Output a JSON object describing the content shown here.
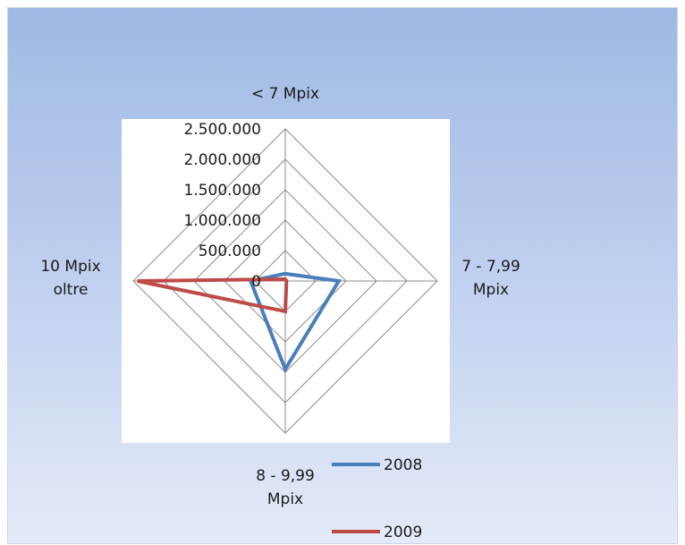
{
  "chart_data": {
    "type": "radar",
    "categories": [
      "< 7 Mpix",
      "7 - 7,99 Mpix",
      "8 - 9,99 Mpix",
      "10 Mpix oltre"
    ],
    "category_lines": [
      [
        "< 7 Mpix"
      ],
      [
        "7 - 7,99",
        "Mpix"
      ],
      [
        "8 - 9,99",
        "Mpix"
      ],
      [
        "10 Mpix",
        "oltre"
      ]
    ],
    "series": [
      {
        "name": "2008",
        "color": "#4a7ebb",
        "values": [
          120000,
          880000,
          1450000,
          570000
        ]
      },
      {
        "name": "2009",
        "color": "#be4b48",
        "values": [
          30000,
          20000,
          500000,
          2430000
        ]
      }
    ],
    "ticks": [
      "0",
      "500.000",
      "1.000.000",
      "1.500.000",
      "2.000.000",
      "2.500.000"
    ],
    "rlim": [
      0,
      2500000
    ],
    "grid": true,
    "legend": "bottom-right"
  }
}
